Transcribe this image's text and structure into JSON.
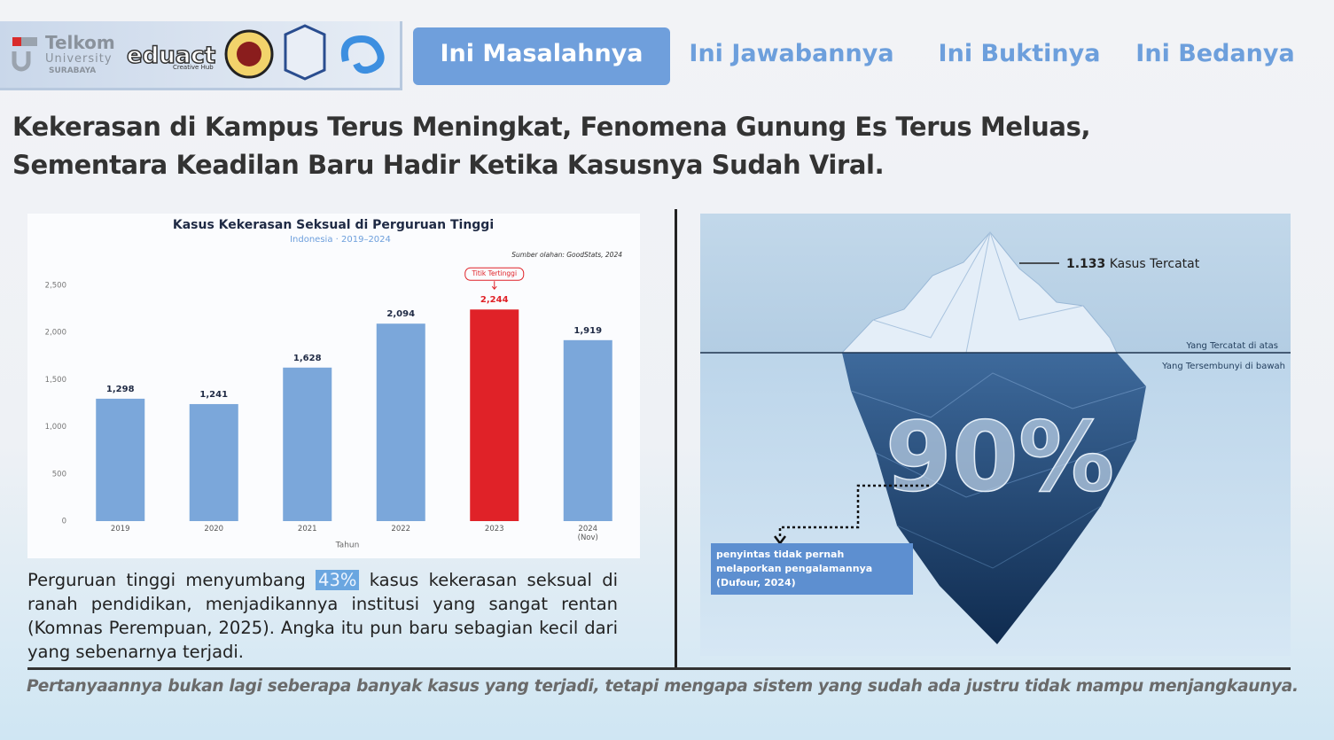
{
  "header": {
    "logos": {
      "telkom": "Telkom",
      "university": "University",
      "city": "SURABAYA",
      "eduact": "eduact",
      "eduact_sub": "Creative Hub"
    },
    "nav": [
      "Ini Masalahnya",
      "Ini Jawabannya",
      "Ini Buktinya",
      "Ini Bedanya"
    ]
  },
  "headline": [
    "Kekerasan di Kampus Terus Meningkat, Fenomena Gunung Es Terus Meluas,",
    "Sementara Keadilan Baru Hadir Ketika Kasusnya Sudah Viral."
  ],
  "chart_data": {
    "type": "bar",
    "title": "Kasus Kekerasan Seksual di Perguruan Tinggi",
    "subtitle": "Indonesia  ·  2019–2024",
    "source": "Sumber olahan: GoodStats, 2024",
    "x_label": "Tahun",
    "categories": [
      "2019",
      "2020",
      "2021",
      "2022",
      "2023",
      "2024 (Nov)"
    ],
    "values": [
      1298,
      1241,
      1628,
      2094,
      2244,
      1919
    ],
    "value_labels": [
      "1,298",
      "1,241",
      "1,628",
      "2,094",
      "2,244",
      "1,919"
    ],
    "colors": [
      "#7ba7da",
      "#7ba7da",
      "#7ba7da",
      "#7ba7da",
      "#e02228",
      "#7ba7da"
    ],
    "annotation": {
      "text": "Titik Tertinggi",
      "category": "2023"
    },
    "ylim": [
      0,
      2500
    ],
    "yticks": [
      0,
      500,
      {
        "value": 1000,
        "label": "1,000"
      },
      {
        "value": 1500,
        "label": "1,500"
      },
      {
        "value": 2000,
        "label": "2,000"
      },
      {
        "value": 2500,
        "label": "2,500"
      }
    ],
    "grid": false
  },
  "paragraph": {
    "before": "Perguruan tinggi menyumbang",
    "highlight": "43%",
    "after": "kasus kekerasan seksual di ranah pendidikan, menjadikannya institusi yang sangat rentan (Komnas Perempuan, 2025). Angka itu pun baru sebagian kecil dari yang sebenarnya terjadi."
  },
  "iceberg": {
    "count": "1.133",
    "count_label": "Kasus Tercatat",
    "above": "Yang Tercatat di atas",
    "below": "Yang Tersembunyi di bawah",
    "percent": "90%",
    "note": "penyintas tidak pernah melaporkan pengalamannya (Dufour, 2024)"
  },
  "footer": "Pertanyaannya bukan lagi seberapa banyak kasus yang terjadi, tetapi mengapa sistem yang sudah ada justru tidak mampu menjangkaunya."
}
